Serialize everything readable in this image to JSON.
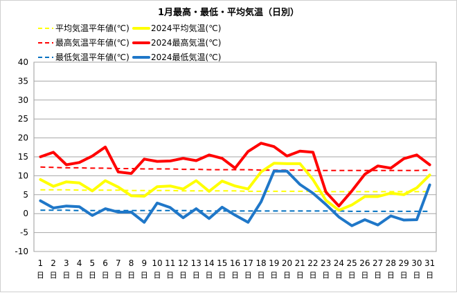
{
  "chart_data": {
    "type": "line",
    "title": "1月最高・最低・平均気温（日別）",
    "xlabel": "",
    "ylabel": "",
    "ylim": [
      -10,
      40
    ],
    "y_ticks": [
      "40",
      "35",
      "30",
      "25",
      "20",
      "15",
      "10",
      "5",
      "0",
      "-5",
      "-10"
    ],
    "x_unit_char": "日",
    "grid": true,
    "legend_location": "top-left",
    "categories": [
      "1",
      "2",
      "3",
      "4",
      "5",
      "6",
      "7",
      "8",
      "9",
      "10",
      "11",
      "12",
      "13",
      "14",
      "15",
      "16",
      "17",
      "18",
      "19",
      "20",
      "21",
      "22",
      "23",
      "24",
      "25",
      "26",
      "27",
      "28",
      "29",
      "30",
      "31"
    ],
    "series": [
      {
        "name": "平均気温平年値(℃)",
        "color": "#FFFF00",
        "dashed": true,
        "values": [
          6.3,
          6.3,
          6.3,
          6.2,
          6.2,
          6.2,
          6.2,
          6.1,
          6.1,
          6.1,
          6.1,
          6.0,
          6.0,
          6.0,
          6.0,
          6.0,
          5.9,
          5.9,
          5.9,
          5.9,
          5.9,
          5.9,
          5.8,
          5.8,
          5.8,
          5.8,
          5.8,
          5.8,
          5.8,
          5.8,
          5.8
        ]
      },
      {
        "name": "2024平均気温(℃)",
        "color": "#FFFF00",
        "dashed": false,
        "values": [
          9.0,
          7.2,
          8.4,
          8.1,
          6.0,
          8.7,
          7.0,
          4.7,
          4.6,
          7.1,
          7.3,
          6.5,
          8.7,
          5.9,
          8.6,
          7.3,
          6.5,
          11.0,
          13.3,
          13.2,
          13.2,
          9.0,
          3.5,
          0.9,
          2.3,
          4.5,
          4.5,
          5.4,
          5.0,
          6.8,
          10.2
        ]
      },
      {
        "name": "最高気温平年値(℃)",
        "color": "#FF0000",
        "dashed": true,
        "values": [
          12.3,
          12.2,
          12.1,
          12.1,
          12.0,
          12.0,
          11.9,
          11.9,
          11.8,
          11.8,
          11.8,
          11.7,
          11.7,
          11.6,
          11.6,
          11.6,
          11.6,
          11.5,
          11.5,
          11.5,
          11.5,
          11.4,
          11.4,
          11.4,
          11.4,
          11.4,
          11.4,
          11.4,
          11.4,
          11.4,
          11.5
        ]
      },
      {
        "name": "2024最高気温(℃)",
        "color": "#FF0000",
        "dashed": false,
        "values": [
          15.0,
          16.2,
          12.9,
          13.5,
          15.2,
          17.6,
          11.0,
          10.6,
          14.4,
          13.8,
          13.9,
          14.6,
          14.0,
          15.5,
          14.6,
          12.0,
          16.4,
          18.6,
          17.7,
          15.2,
          16.5,
          16.2,
          5.7,
          2.0,
          6.0,
          10.4,
          12.6,
          12.0,
          14.5,
          15.5,
          12.9
        ]
      },
      {
        "name": "最低気温平年値(℃)",
        "color": "#0070C0",
        "dashed": true,
        "values": [
          0.9,
          0.9,
          0.9,
          0.8,
          0.8,
          0.8,
          0.8,
          0.8,
          0.8,
          0.8,
          0.8,
          0.8,
          0.8,
          0.7,
          0.7,
          0.7,
          0.7,
          0.7,
          0.7,
          0.7,
          0.7,
          0.7,
          0.7,
          0.7,
          0.6,
          0.6,
          0.6,
          0.6,
          0.6,
          0.6,
          0.6
        ]
      },
      {
        "name": "2024最低気温(℃)",
        "color": "#1F77C8",
        "dashed": false,
        "values": [
          3.4,
          1.5,
          2.0,
          1.8,
          -0.5,
          1.3,
          0.4,
          0.4,
          -2.3,
          2.8,
          1.6,
          -1.1,
          1.3,
          -1.3,
          1.7,
          -0.4,
          -2.3,
          3.1,
          11.2,
          11.2,
          7.7,
          5.4,
          2.4,
          -0.9,
          -3.2,
          -1.6,
          -3.0,
          -0.6,
          -1.7,
          -1.6,
          7.6
        ]
      }
    ]
  }
}
